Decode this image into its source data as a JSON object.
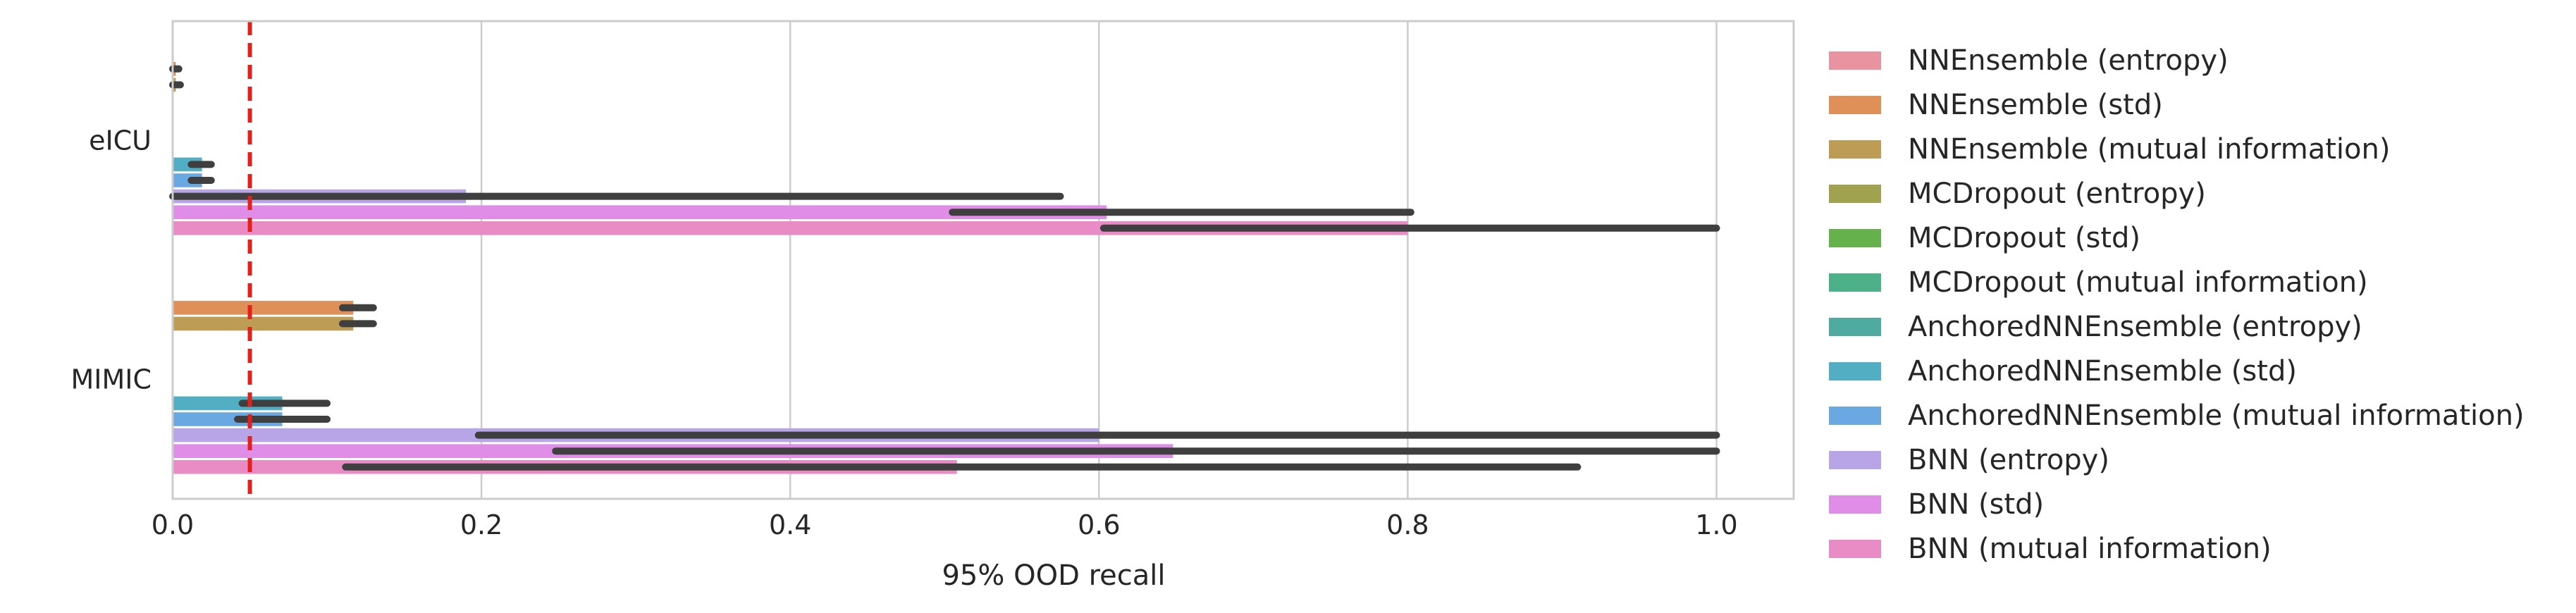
{
  "chart_data": {
    "type": "bar",
    "orientation": "horizontal",
    "xlabel": "95% OOD recall",
    "ylabel": "",
    "xlim": [
      0.0,
      1.05
    ],
    "x_ticks": [
      "0.0",
      "0.2",
      "0.4",
      "0.6",
      "0.8",
      "1.0"
    ],
    "grid": "vertical",
    "reference_line": {
      "x": 0.05,
      "style": "dashed",
      "color": "#e3211c"
    },
    "legend_position": "right",
    "categories": [
      "eICU",
      "MIMIC"
    ],
    "series": [
      {
        "name": "NNEnsemble (entropy)",
        "color": "#e8939f",
        "values": [
          0.0,
          0.0
        ],
        "ci": [
          [
            0.0,
            0.0
          ],
          [
            0.0,
            0.0
          ]
        ]
      },
      {
        "name": "NNEnsemble (std)",
        "color": "#df9058",
        "values": [
          0.002,
          0.117
        ],
        "ci": [
          [
            0.0,
            0.004
          ],
          [
            0.11,
            0.13
          ]
        ]
      },
      {
        "name": "NNEnsemble (mutual information)",
        "color": "#bd9c55",
        "values": [
          0.002,
          0.117
        ],
        "ci": [
          [
            0.0,
            0.005
          ],
          [
            0.11,
            0.13
          ]
        ]
      },
      {
        "name": "MCDropout (entropy)",
        "color": "#a0a24f",
        "values": [
          0.0,
          0.0
        ],
        "ci": [
          [
            0.0,
            0.0
          ],
          [
            0.0,
            0.0
          ]
        ]
      },
      {
        "name": "MCDropout (std)",
        "color": "#65b14c",
        "values": [
          0.0,
          0.0
        ],
        "ci": [
          [
            0.0,
            0.0
          ],
          [
            0.0,
            0.0
          ]
        ]
      },
      {
        "name": "MCDropout (mutual information)",
        "color": "#4cb188",
        "values": [
          0.0,
          0.0
        ],
        "ci": [
          [
            0.0,
            0.0
          ],
          [
            0.0,
            0.0
          ]
        ]
      },
      {
        "name": "AnchoredNNEnsemble (entropy)",
        "color": "#4fab9f",
        "values": [
          0.0,
          0.0
        ],
        "ci": [
          [
            0.0,
            0.0
          ],
          [
            0.0,
            0.0
          ]
        ]
      },
      {
        "name": "AnchoredNNEnsemble (std)",
        "color": "#52aec2",
        "values": [
          0.019,
          0.071
        ],
        "ci": [
          [
            0.012,
            0.025
          ],
          [
            0.045,
            0.1
          ]
        ]
      },
      {
        "name": "AnchoredNNEnsemble (mutual information)",
        "color": "#6aa8e2",
        "values": [
          0.019,
          0.071
        ],
        "ci": [
          [
            0.012,
            0.025
          ],
          [
            0.042,
            0.1
          ]
        ]
      },
      {
        "name": "BNN (entropy)",
        "color": "#b8a5e8",
        "values": [
          0.19,
          0.6
        ],
        "ci": [
          [
            0.0,
            0.575
          ],
          [
            0.198,
            1.0
          ]
        ]
      },
      {
        "name": "BNN (std)",
        "color": "#e08de8",
        "values": [
          0.605,
          0.648
        ],
        "ci": [
          [
            0.505,
            0.802
          ],
          [
            0.248,
            1.0
          ]
        ]
      },
      {
        "name": "BNN (mutual information)",
        "color": "#e98cc6",
        "values": [
          0.8,
          0.508
        ],
        "ci": [
          [
            0.603,
            1.0
          ],
          [
            0.112,
            0.91
          ]
        ]
      }
    ]
  }
}
